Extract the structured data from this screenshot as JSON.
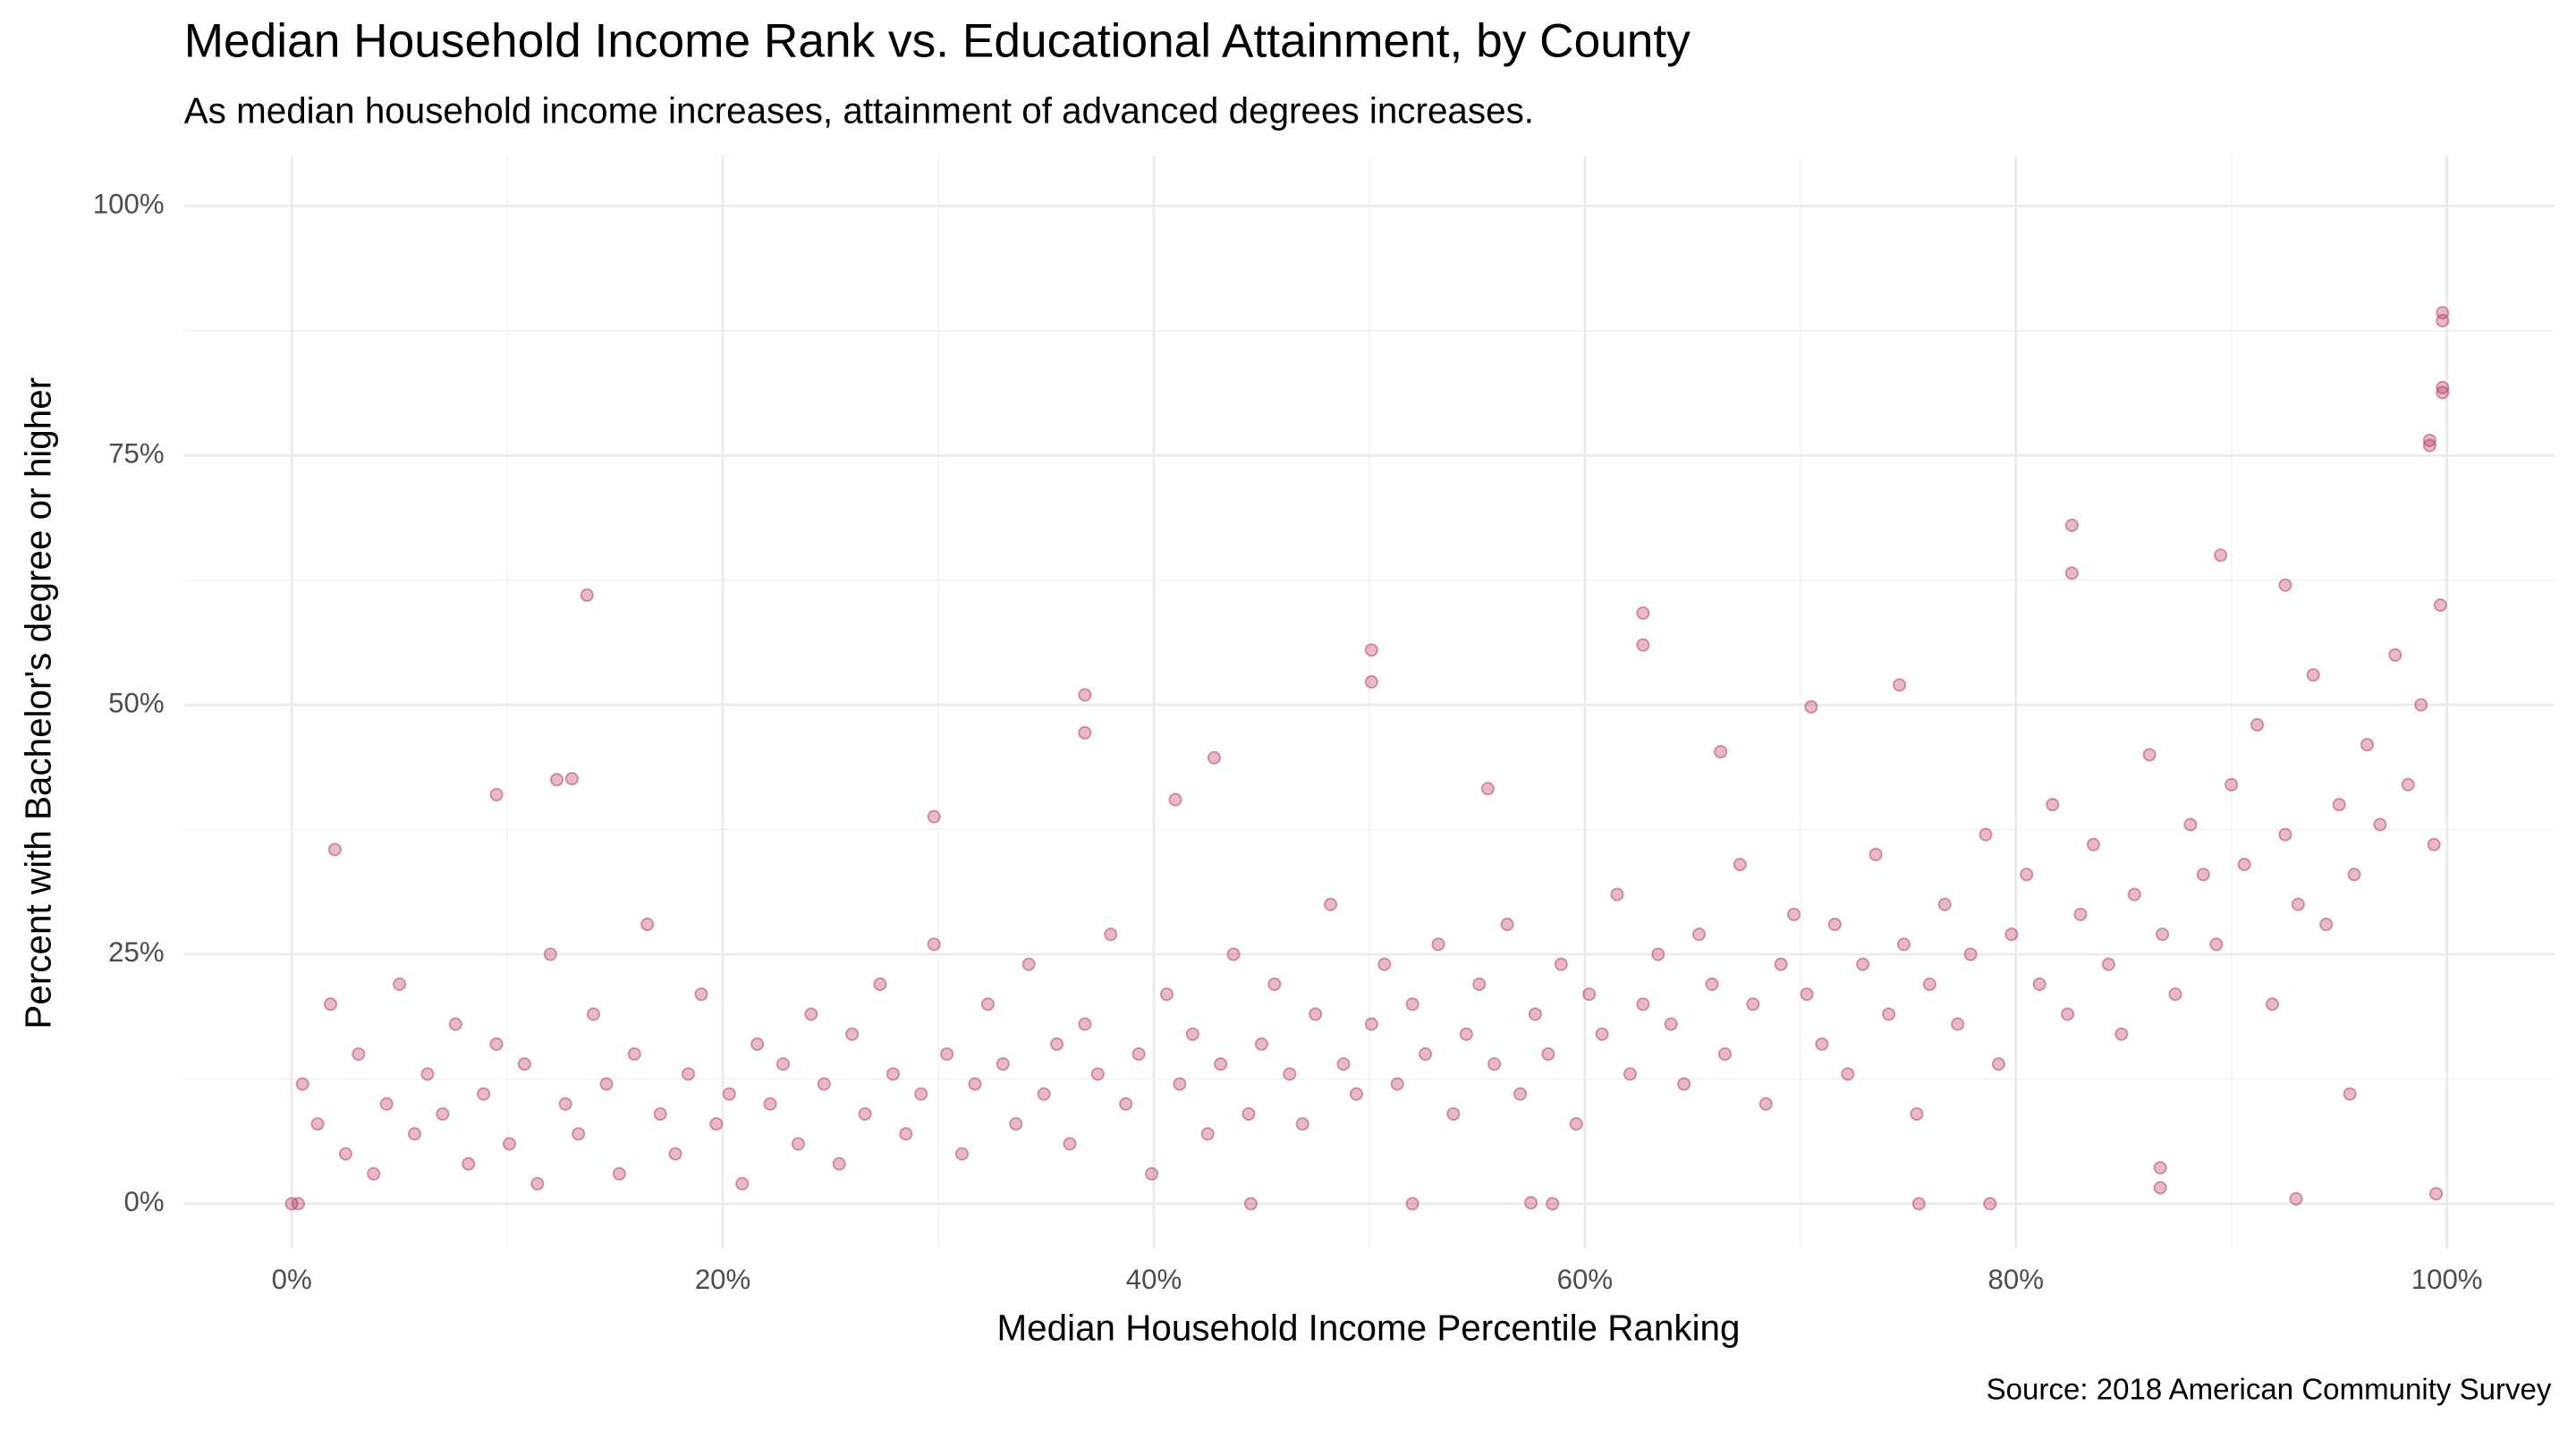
{
  "chart_data": {
    "type": "scatter",
    "title": "Median Household Income Rank vs. Educational Attainment, by County",
    "subtitle": "As median household income increases, attainment of advanced degrees increases.",
    "x_label": "Median Household Income Percentile Ranking",
    "y_label": "Percent with Bachelor's degree or higher",
    "caption": "Source: 2018 American Community Survey",
    "color": "#b83a68",
    "alpha": 0.35,
    "grid": true,
    "xlim": [
      -5,
      105
    ],
    "ylim": [
      -4.5,
      105
    ],
    "xticks": [
      {
        "value": 0,
        "label": "0%"
      },
      {
        "value": 20,
        "label": "20%"
      },
      {
        "value": 40,
        "label": "40%"
      },
      {
        "value": 60,
        "label": "60%"
      },
      {
        "value": 80,
        "label": "80%"
      },
      {
        "value": 100,
        "label": "100%"
      }
    ],
    "yticks": [
      {
        "value": 0,
        "label": "0%"
      },
      {
        "value": 25,
        "label": "25%"
      },
      {
        "value": 50,
        "label": "50%"
      },
      {
        "value": 75,
        "label": "75%"
      },
      {
        "value": 100,
        "label": "100%"
      }
    ],
    "xminor": [
      10,
      30,
      50,
      70,
      90
    ],
    "yminor": [
      12.5,
      37.5,
      62.5,
      87.5
    ],
    "x": [
      0.5,
      1.2,
      1.8,
      2.5,
      3.1,
      3.8,
      4.4,
      5.0,
      5.7,
      6.3,
      7.0,
      7.6,
      8.2,
      8.9,
      9.5,
      10.1,
      10.8,
      11.4,
      12.0,
      12.7,
      13.3,
      14.0,
      14.6,
      15.2,
      15.9,
      16.5,
      17.1,
      17.8,
      18.4,
      19.0,
      19.7,
      20.3,
      20.9,
      21.6,
      22.2,
      22.8,
      23.5,
      24.1,
      24.7,
      25.4,
      26.0,
      26.6,
      27.3,
      27.9,
      28.5,
      29.2,
      29.8,
      30.4,
      31.1,
      31.7,
      32.3,
      33.0,
      33.6,
      34.2,
      34.9,
      35.5,
      36.1,
      36.8,
      37.4,
      38.0,
      38.7,
      39.3,
      39.9,
      40.6,
      41.2,
      41.8,
      42.5,
      43.1,
      43.7,
      44.4,
      45.0,
      45.6,
      46.3,
      46.9,
      47.5,
      48.2,
      48.8,
      49.4,
      50.1,
      50.7,
      51.3,
      52.0,
      52.6,
      53.2,
      53.9,
      54.5,
      55.1,
      55.8,
      56.4,
      57.0,
      57.7,
      58.3,
      58.9,
      59.6,
      60.2,
      60.8,
      61.5,
      62.1,
      62.7,
      63.4,
      64.0,
      64.6,
      65.3,
      65.9,
      66.5,
      67.2,
      67.8,
      68.4,
      69.1,
      69.7,
      70.3,
      71.0,
      71.6,
      72.2,
      72.9,
      73.5,
      74.1,
      74.8,
      75.4,
      76.0,
      76.7,
      77.3,
      77.9,
      78.6,
      79.2,
      79.8,
      80.5,
      81.1,
      81.7,
      82.4,
      83.0,
      83.6,
      84.3,
      84.9,
      85.5,
      86.2,
      86.8,
      87.4,
      88.1,
      88.7,
      89.3,
      90.0,
      90.6,
      91.2,
      91.9,
      92.5,
      93.1,
      93.8,
      94.4,
      95.0,
      95.7,
      96.3,
      96.9,
      97.6,
      98.2,
      98.8,
      99.4,
      99.7,
      13.7,
      50.1,
      50.1,
      62.7,
      62.7,
      82.6,
      82.6,
      99.8,
      99.8,
      99.8,
      99.8,
      99.2,
      99.2,
      89.5,
      92.5,
      36.8,
      36.8,
      74.6,
      70.5,
      9.5,
      12.3,
      13.0,
      42.8,
      41.0,
      95.5,
      93.0,
      99.5,
      0,
      0.3,
      78.8,
      75.5,
      44.5,
      52.0,
      58.5,
      86.7,
      86.7,
      57.5,
      2.0,
      29.8,
      55.5,
      66.3
    ],
    "y": [
      12,
      8,
      20,
      5,
      15,
      3,
      10,
      22,
      7,
      13,
      9,
      18,
      4,
      11,
      16,
      6,
      14,
      2,
      25,
      10,
      7,
      19,
      12,
      3,
      15,
      28,
      9,
      5,
      13,
      21,
      8,
      11,
      2,
      16,
      10,
      14,
      6,
      19,
      12,
      4,
      17,
      9,
      22,
      13,
      7,
      11,
      26,
      15,
      5,
      12,
      20,
      14,
      8,
      24,
      11,
      16,
      6,
      18,
      13,
      27,
      10,
      15,
      3,
      21,
      12,
      17,
      7,
      14,
      25,
      9,
      16,
      22,
      13,
      8,
      19,
      30,
      14,
      11,
      18,
      24,
      12,
      20,
      15,
      26,
      9,
      17,
      22,
      14,
      28,
      11,
      19,
      15,
      24,
      8,
      21,
      17,
      31,
      13,
      20,
      25,
      18,
      12,
      27,
      22,
      15,
      34,
      20,
      10,
      24,
      29,
      21,
      16,
      28,
      13,
      24,
      35,
      19,
      26,
      9,
      22,
      30,
      18,
      25,
      37,
      14,
      27,
      33,
      22,
      40,
      19,
      29,
      36,
      24,
      17,
      31,
      45,
      27,
      21,
      38,
      33,
      26,
      42,
      34,
      48,
      20,
      37,
      30,
      53,
      28,
      40,
      33,
      46,
      38,
      55,
      42,
      50,
      36,
      60,
      61,
      55.5,
      52.3,
      59.2,
      56,
      68,
      63.2,
      89.3,
      88.5,
      81.8,
      81.3,
      76.5,
      76,
      65,
      62,
      51,
      47.2,
      52,
      49.8,
      41,
      42.5,
      42.6,
      44.7,
      40.5,
      11,
      0.5,
      1,
      0,
      0,
      0,
      0,
      0,
      0,
      0,
      3.6,
      1.6,
      0.1,
      35.5,
      38.8,
      41.6,
      45.3
    ]
  }
}
